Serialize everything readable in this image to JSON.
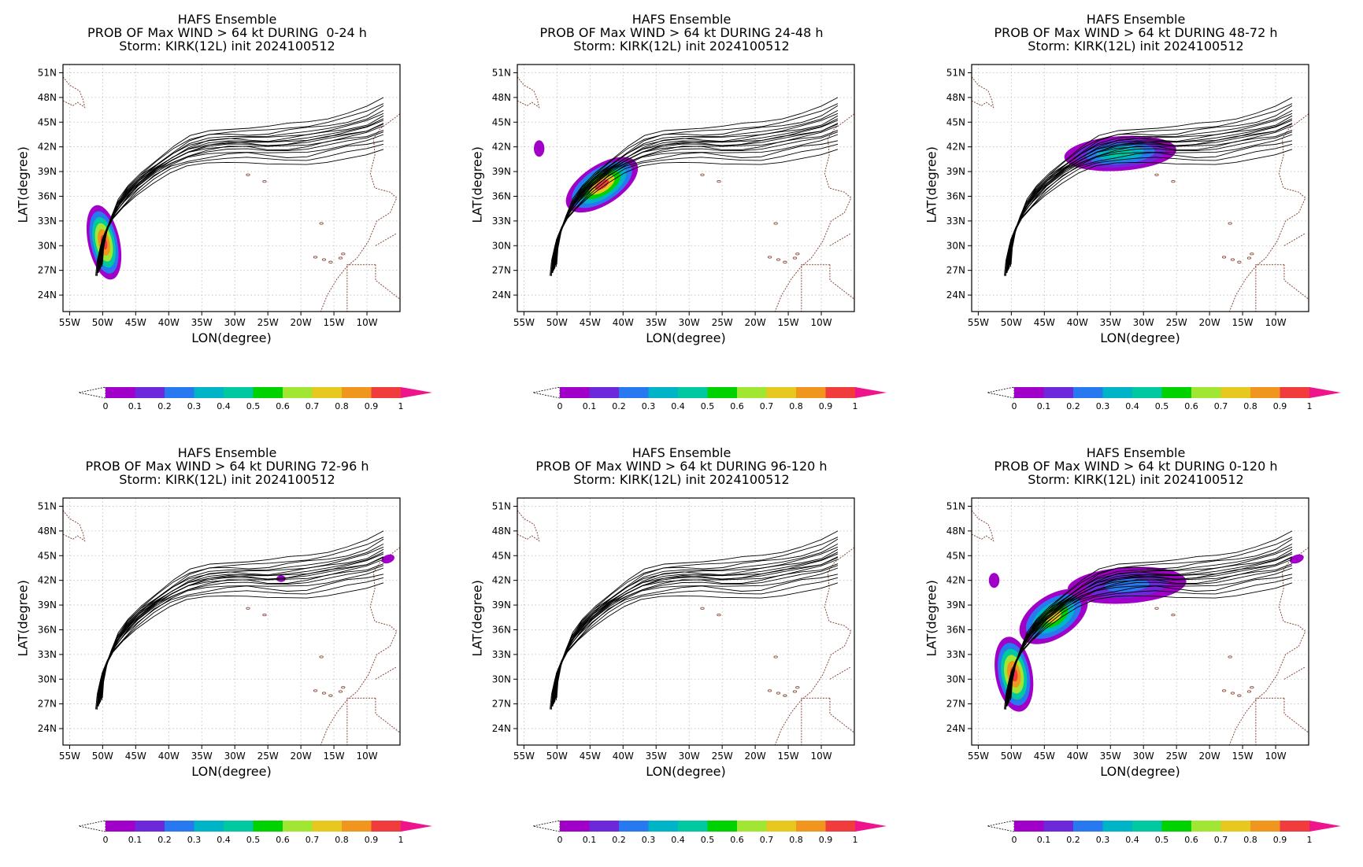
{
  "panels": [
    {
      "line1": "HAFS Ensemble",
      "line2": "PROB OF Max WIND > 64 kt DURING  0-24 h",
      "line3": "Storm: KIRK(12L) init 2024100512",
      "phase": "0-24"
    },
    {
      "line1": "HAFS Ensemble",
      "line2": "PROB OF Max WIND > 64 kt DURING 24-48 h",
      "line3": "Storm: KIRK(12L) init 2024100512",
      "phase": "24-48"
    },
    {
      "line1": "HAFS Ensemble",
      "line2": "PROB OF Max WIND > 64 kt DURING 48-72 h",
      "line3": "Storm: KIRK(12L) init 2024100512",
      "phase": "48-72"
    },
    {
      "line1": "HAFS Ensemble",
      "line2": "PROB OF Max WIND > 64 kt DURING 72-96 h",
      "line3": "Storm: KIRK(12L) init 2024100512",
      "phase": "72-96"
    },
    {
      "line1": "HAFS Ensemble",
      "line2": "PROB OF Max WIND > 64 kt DURING 96-120 h",
      "line3": "Storm: KIRK(12L) init 2024100512",
      "phase": "96-120"
    },
    {
      "line1": "HAFS Ensemble",
      "line2": "PROB OF Max WIND > 64 kt DURING 0-120 h",
      "line3": "Storm: KIRK(12L) init 2024100512",
      "phase": "0-120"
    }
  ],
  "axes": {
    "xlabel": "LON(degree)",
    "ylabel": "LAT(degree)",
    "xticks": [
      "55W",
      "50W",
      "45W",
      "40W",
      "35W",
      "30W",
      "25W",
      "20W",
      "15W",
      "10W"
    ],
    "yticks": [
      "51N",
      "48N",
      "45N",
      "42N",
      "39N",
      "36N",
      "33N",
      "30N",
      "27N",
      "24N"
    ],
    "lon_range": [
      -56,
      -5
    ],
    "lat_range": [
      22,
      52
    ]
  },
  "colorbar": {
    "ticks": [
      "0",
      "0.1",
      "0.2",
      "0.3",
      "0.4",
      "0.5",
      "0.6",
      "0.7",
      "0.8",
      "0.9",
      "1"
    ],
    "colors": [
      "#a000c8",
      "#6e28dc",
      "#2878f0",
      "#00b4c8",
      "#00c8a0",
      "#00d200",
      "#a0e632",
      "#e6c81e",
      "#f0961e",
      "#f03c3c"
    ],
    "over_color": "#f0148c"
  }
}
